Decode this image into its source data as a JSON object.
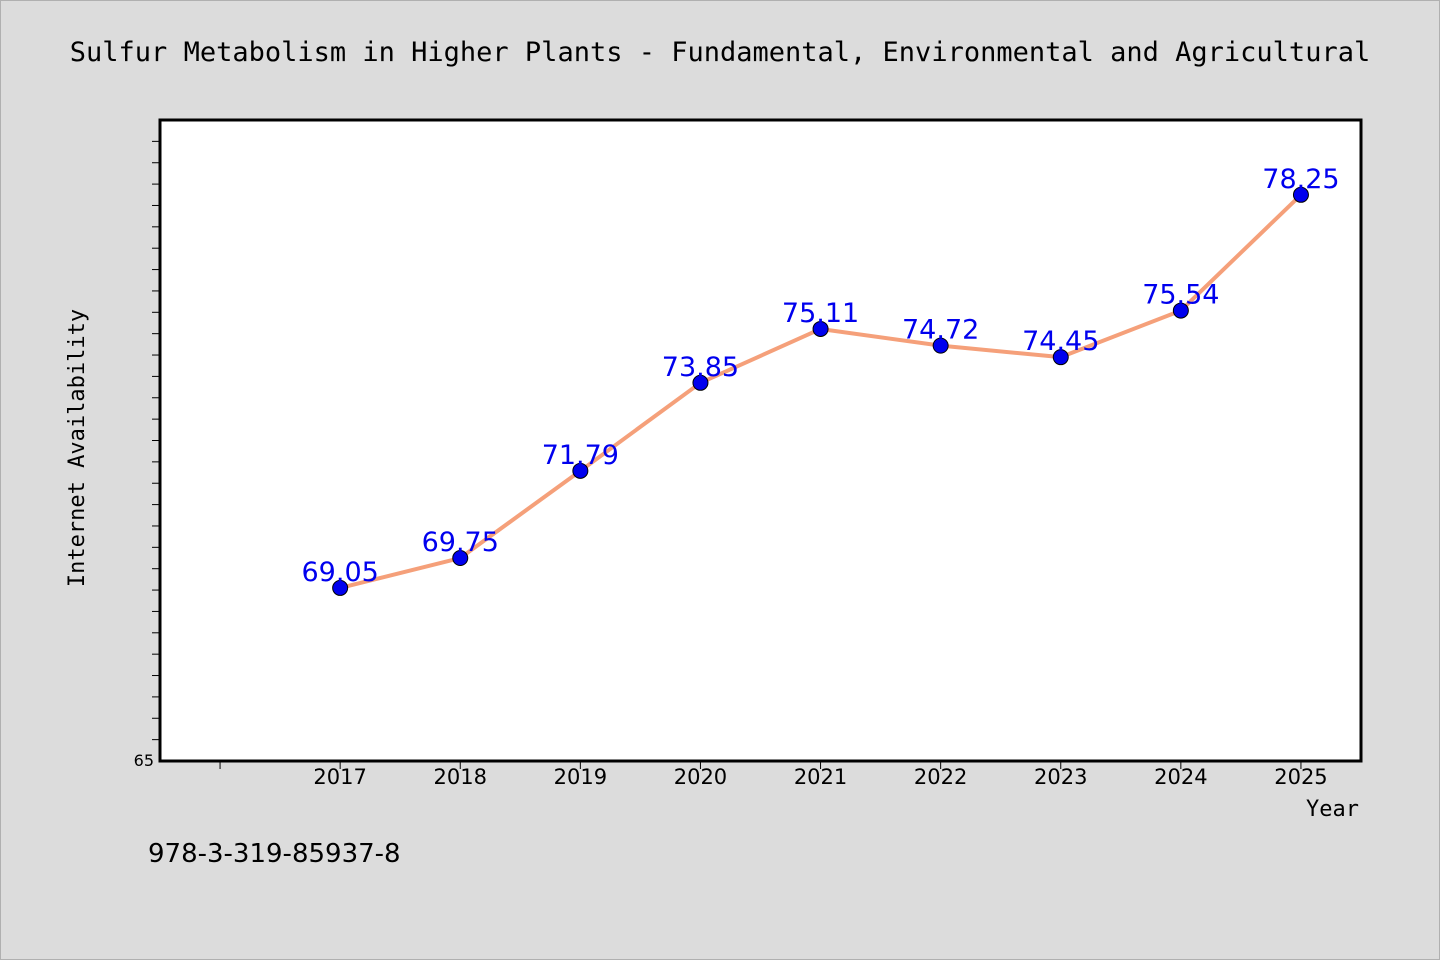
{
  "chart_data": {
    "type": "line",
    "title": "Sulfur Metabolism in Higher Plants - Fundamental, Environmental and Agricultural",
    "xlabel": "Year",
    "ylabel": "Internet Availability",
    "x": [
      "2017",
      "2018",
      "2019",
      "2020",
      "2021",
      "2022",
      "2023",
      "2024",
      "2025"
    ],
    "series": [
      {
        "values": [
          69.05,
          69.75,
          71.79,
          73.85,
          75.11,
          74.72,
          74.45,
          75.54,
          78.25
        ],
        "data_labels": [
          "69.05",
          "69.75",
          "71.79",
          "73.85",
          "75.11",
          "74.72",
          "74.45",
          "75.54",
          "78.25"
        ],
        "line_color": "#f5a07a",
        "marker_color": "#0000ee",
        "label_color": "#0000ee"
      }
    ],
    "ylim": [
      65,
      80
    ],
    "y_tick_labels": [
      "65"
    ],
    "x_range": [
      2015.5,
      2025.5
    ],
    "grid": false,
    "legend": "none"
  },
  "footer": {
    "isbn": "978-3-319-85937-8"
  },
  "colors": {
    "background": "#dcdcdc",
    "plot_background": "#ffffff",
    "axis": "#000000"
  }
}
